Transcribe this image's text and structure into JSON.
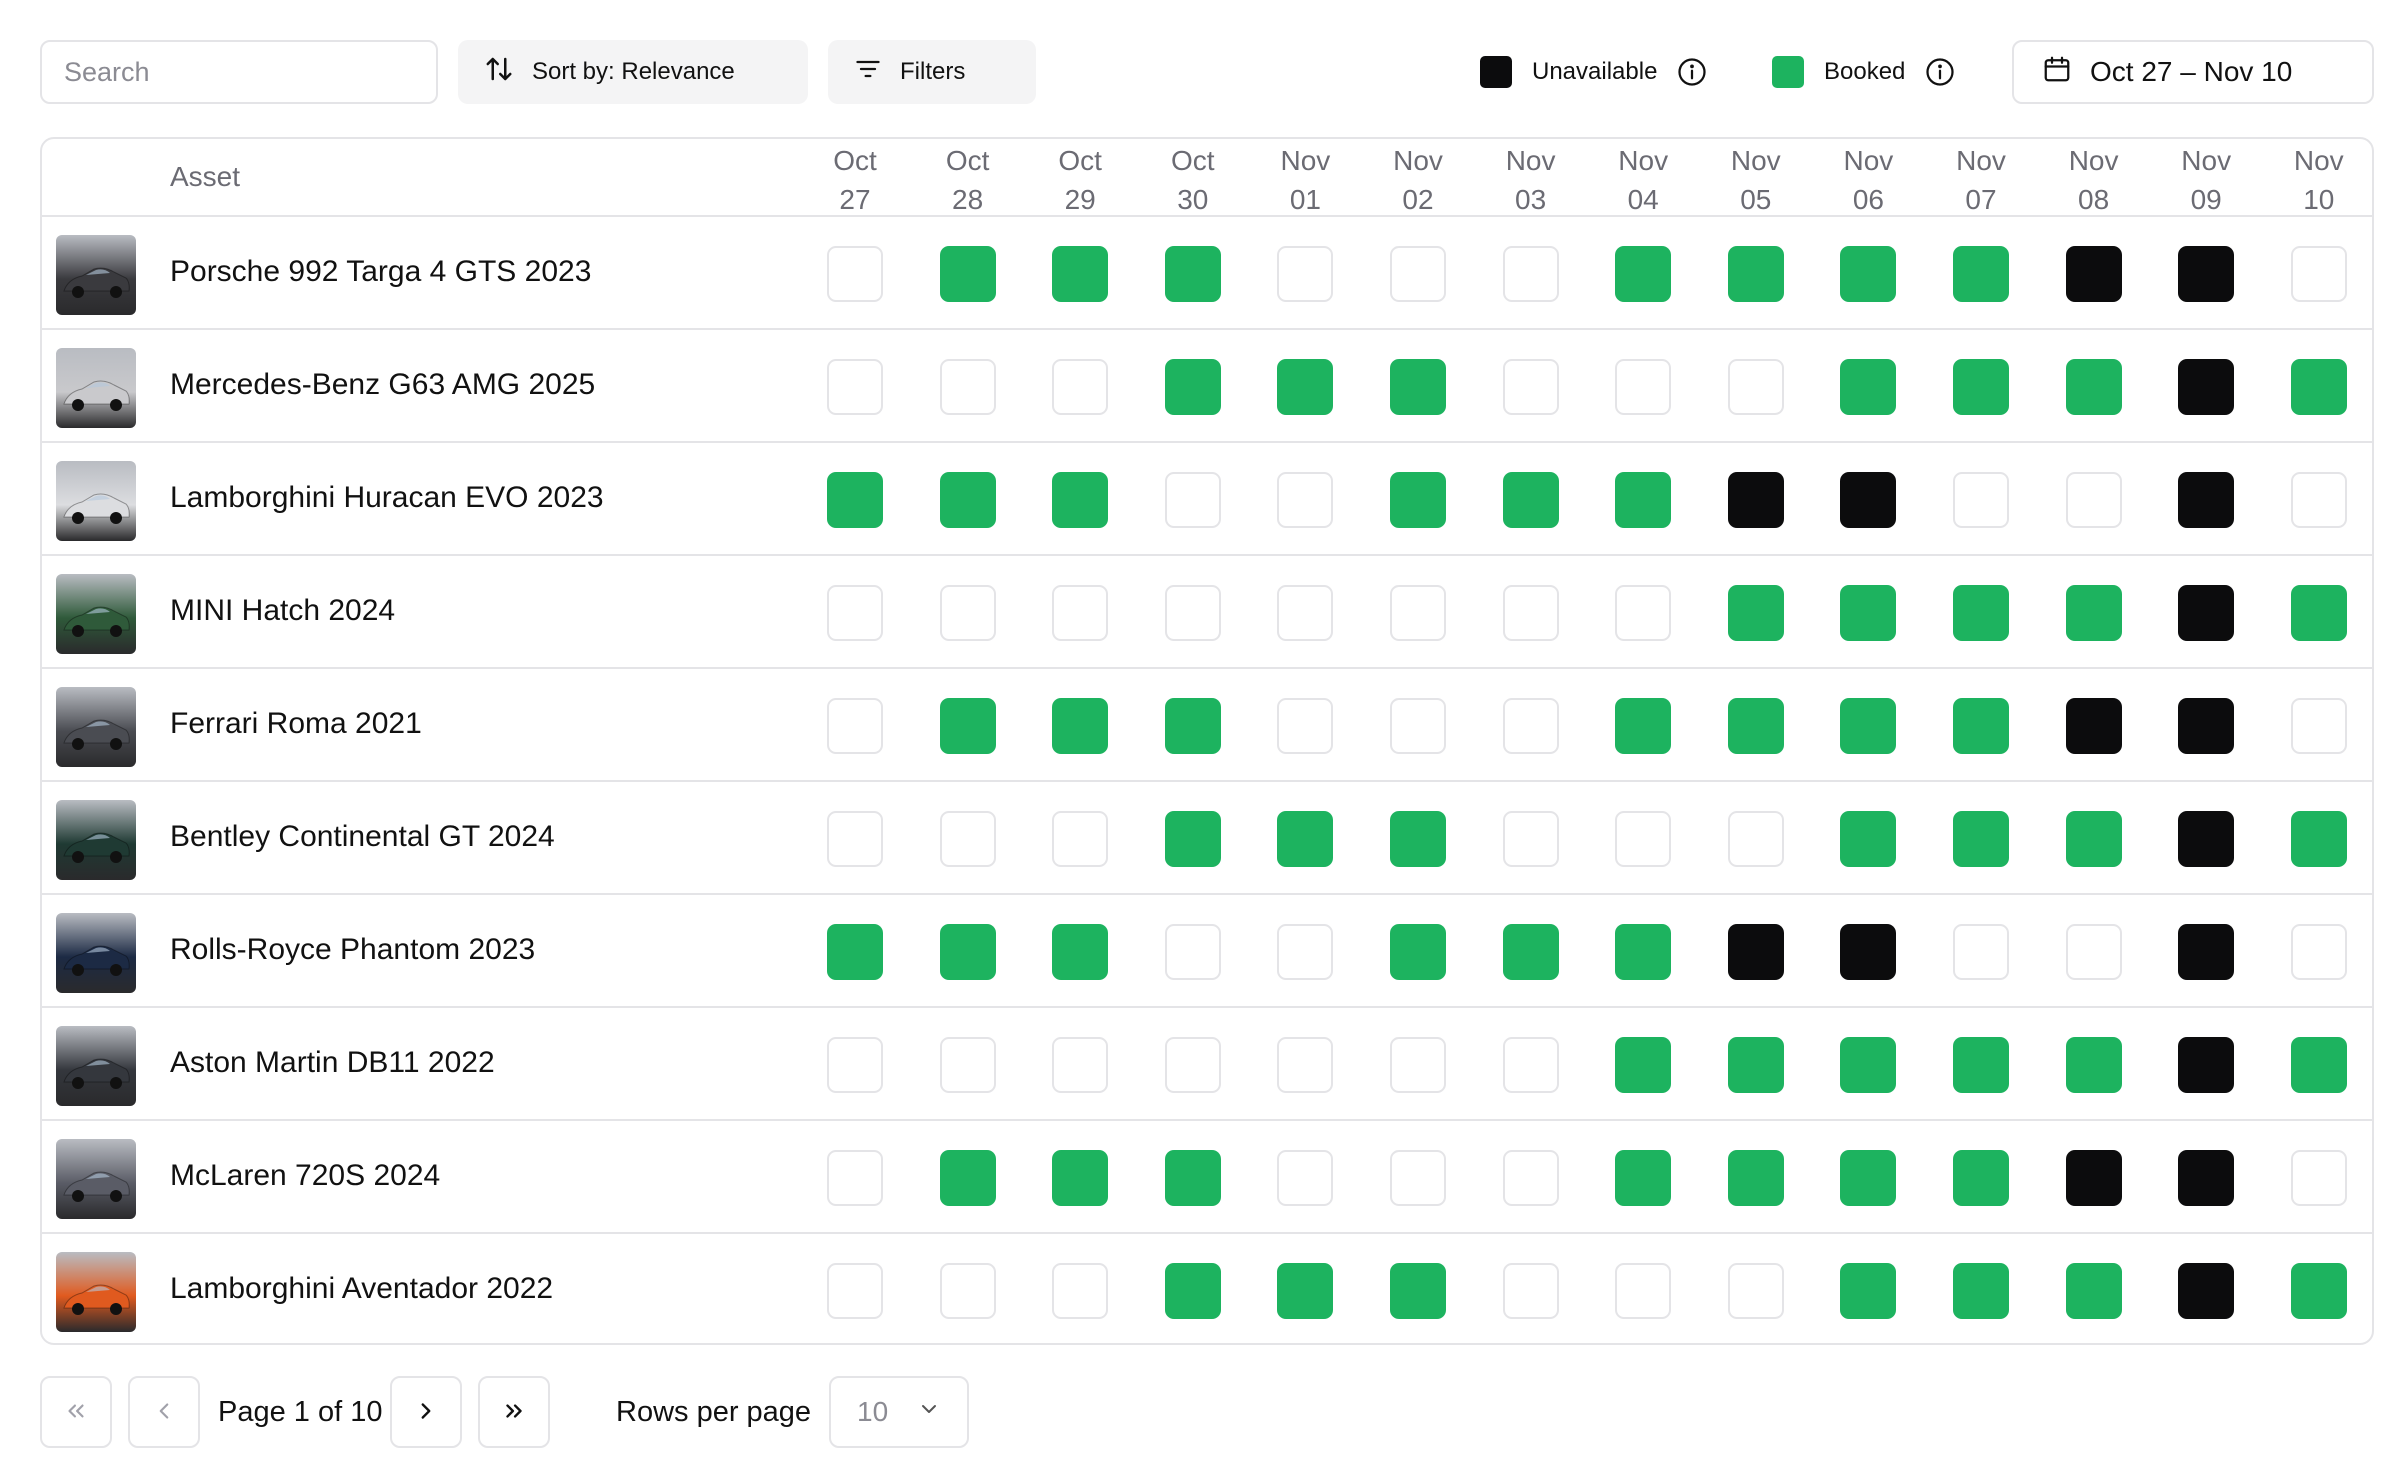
{
  "toolbar": {
    "search_placeholder": "Search",
    "sort_label": "Sort by: Relevance",
    "filters_label": "Filters",
    "legend": [
      {
        "label": "Unavailable",
        "color": "#0c0c0d",
        "icon": "info-icon"
      },
      {
        "label": "Booked",
        "color": "#1db35f",
        "icon": "info-icon"
      }
    ],
    "date_range": "Oct 27 – Nov 10",
    "date_icon": "calendar-icon"
  },
  "colors": {
    "booked": "#1db35f",
    "unavailable": "#0c0c0d",
    "free_border": "#e4e4e7"
  },
  "table": {
    "asset_header": "Asset",
    "days": [
      {
        "month": "Oct",
        "day": "27"
      },
      {
        "month": "Oct",
        "day": "28"
      },
      {
        "month": "Oct",
        "day": "29"
      },
      {
        "month": "Oct",
        "day": "30"
      },
      {
        "month": "Nov",
        "day": "01"
      },
      {
        "month": "Nov",
        "day": "02"
      },
      {
        "month": "Nov",
        "day": "03"
      },
      {
        "month": "Nov",
        "day": "04"
      },
      {
        "month": "Nov",
        "day": "05"
      },
      {
        "month": "Nov",
        "day": "06"
      },
      {
        "month": "Nov",
        "day": "07"
      },
      {
        "month": "Nov",
        "day": "08"
      },
      {
        "month": "Nov",
        "day": "09"
      },
      {
        "month": "Nov",
        "day": "10"
      }
    ],
    "rows": [
      {
        "name": "Porsche 992 Targa 4 GTS 2023",
        "thumb_color": "#3a3a3e",
        "status": [
          "free",
          "booked",
          "booked",
          "booked",
          "free",
          "free",
          "free",
          "booked",
          "booked",
          "booked",
          "booked",
          "unavailable",
          "unavailable",
          "free"
        ]
      },
      {
        "name": "Mercedes-Benz G63 AMG 2025",
        "thumb_color": "#c9c9cc",
        "status": [
          "free",
          "free",
          "free",
          "booked",
          "booked",
          "booked",
          "free",
          "free",
          "free",
          "booked",
          "booked",
          "booked",
          "unavailable",
          "booked"
        ]
      },
      {
        "name": "Lamborghini Huracan EVO 2023",
        "thumb_color": "#dcdde0",
        "status": [
          "booked",
          "booked",
          "booked",
          "free",
          "free",
          "booked",
          "booked",
          "booked",
          "unavailable",
          "unavailable",
          "free",
          "free",
          "unavailable",
          "free"
        ]
      },
      {
        "name": "MINI Hatch 2024",
        "thumb_color": "#2f5a3a",
        "status": [
          "free",
          "free",
          "free",
          "free",
          "free",
          "free",
          "free",
          "free",
          "booked",
          "booked",
          "booked",
          "booked",
          "unavailable",
          "booked"
        ]
      },
      {
        "name": "Ferrari Roma 2021",
        "thumb_color": "#4a4c52",
        "status": [
          "free",
          "booked",
          "booked",
          "booked",
          "free",
          "free",
          "free",
          "booked",
          "booked",
          "booked",
          "booked",
          "unavailable",
          "unavailable",
          "free"
        ]
      },
      {
        "name": "Bentley Continental GT 2024",
        "thumb_color": "#1f3a33",
        "status": [
          "free",
          "free",
          "free",
          "booked",
          "booked",
          "booked",
          "free",
          "free",
          "free",
          "booked",
          "booked",
          "booked",
          "unavailable",
          "booked"
        ]
      },
      {
        "name": "Rolls-Royce Phantom 2023",
        "thumb_color": "#1c2a44",
        "status": [
          "booked",
          "booked",
          "booked",
          "free",
          "free",
          "booked",
          "booked",
          "booked",
          "unavailable",
          "unavailable",
          "free",
          "free",
          "unavailable",
          "free"
        ]
      },
      {
        "name": "Aston Martin DB11 2022",
        "thumb_color": "#34373d",
        "status": [
          "free",
          "free",
          "free",
          "free",
          "free",
          "free",
          "free",
          "booked",
          "booked",
          "booked",
          "booked",
          "booked",
          "unavailable",
          "booked"
        ]
      },
      {
        "name": "McLaren 720S 2024",
        "thumb_color": "#5a5c66",
        "status": [
          "free",
          "booked",
          "booked",
          "booked",
          "free",
          "free",
          "free",
          "booked",
          "booked",
          "booked",
          "booked",
          "unavailable",
          "unavailable",
          "free"
        ]
      },
      {
        "name": "Lamborghini Aventador 2022",
        "thumb_color": "#e05a1f",
        "status": [
          "free",
          "free",
          "free",
          "booked",
          "booked",
          "booked",
          "free",
          "free",
          "free",
          "booked",
          "booked",
          "booked",
          "unavailable",
          "booked"
        ]
      }
    ]
  },
  "pagination": {
    "page_label": "Page 1 of 10",
    "rows_per_page_label": "Rows per page",
    "rows_per_page_value": "10"
  }
}
